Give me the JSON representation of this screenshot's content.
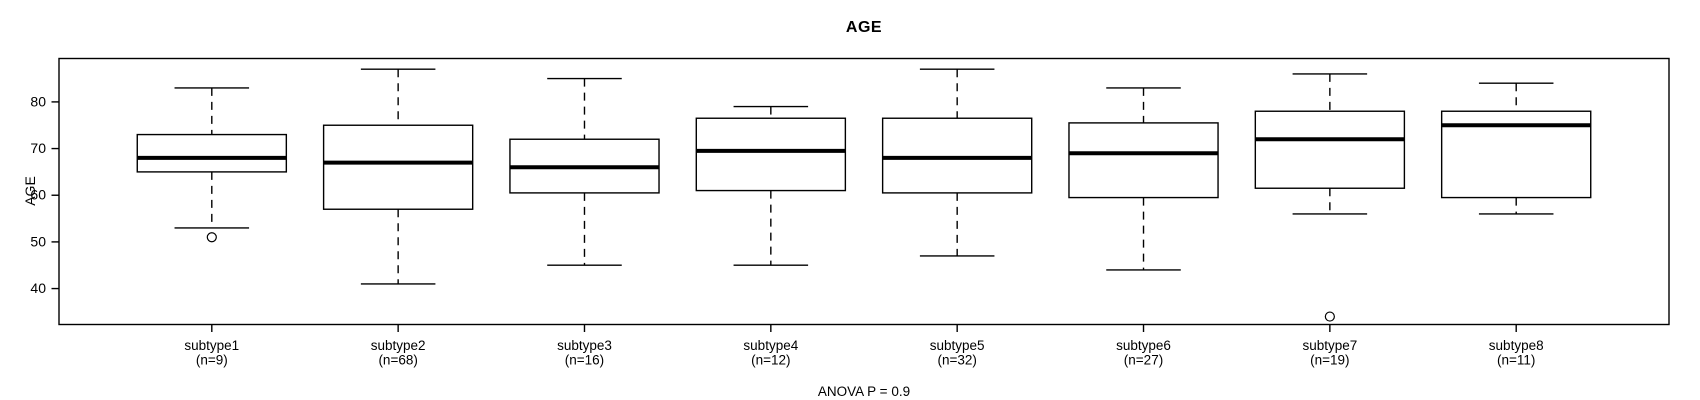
{
  "chart_data": {
    "type": "boxplot",
    "title": "AGE",
    "ylabel": "AGE",
    "xlabel": "",
    "footnote": "ANOVA P = 0.9",
    "ylim": [
      32.3,
      89.3
    ],
    "yticks": [
      40,
      50,
      60,
      70,
      80
    ],
    "grid": false,
    "legend": "none",
    "colors": {
      "stroke": "#000000",
      "box_fill": "#ffffff",
      "background": "#ffffff"
    },
    "series": [
      {
        "label": "subtype1",
        "sublabel": "(n=9)",
        "n": 9,
        "low": 53,
        "q1": 65,
        "median": 68,
        "q3": 73,
        "high": 83,
        "outliers": [
          51
        ]
      },
      {
        "label": "subtype2",
        "sublabel": "(n=68)",
        "n": 68,
        "low": 41,
        "q1": 57,
        "median": 67,
        "q3": 75,
        "high": 87,
        "outliers": []
      },
      {
        "label": "subtype3",
        "sublabel": "(n=16)",
        "n": 16,
        "low": 45,
        "q1": 60.5,
        "median": 66,
        "q3": 72,
        "high": 85,
        "outliers": []
      },
      {
        "label": "subtype4",
        "sublabel": "(n=12)",
        "n": 12,
        "low": 45,
        "q1": 61,
        "median": 69.5,
        "q3": 76.5,
        "high": 79,
        "outliers": []
      },
      {
        "label": "subtype5",
        "sublabel": "(n=32)",
        "n": 32,
        "low": 47,
        "q1": 60.5,
        "median": 68,
        "q3": 76.5,
        "high": 87,
        "outliers": []
      },
      {
        "label": "subtype6",
        "sublabel": "(n=27)",
        "n": 27,
        "low": 44,
        "q1": 59.5,
        "median": 69,
        "q3": 75.5,
        "high": 83,
        "outliers": []
      },
      {
        "label": "subtype7",
        "sublabel": "(n=19)",
        "n": 19,
        "low": 56,
        "q1": 61.5,
        "median": 72,
        "q3": 78,
        "high": 86,
        "outliers": [
          34
        ]
      },
      {
        "label": "subtype8",
        "sublabel": "(n=11)",
        "n": 11,
        "low": 56,
        "q1": 59.5,
        "median": 75,
        "q3": 78,
        "high": 84,
        "outliers": []
      }
    ]
  }
}
